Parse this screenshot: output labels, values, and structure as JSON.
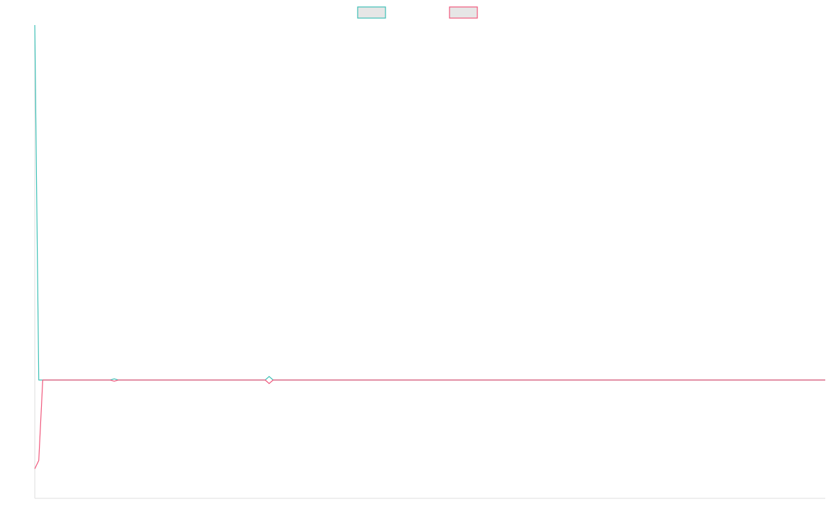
{
  "chart_data": {
    "type": "line",
    "title": "",
    "xlabel": "",
    "ylabel": "",
    "grid": false,
    "legend_position": "top-center",
    "ylim": [
      -100,
      300
    ],
    "series": [
      {
        "color": "#3bbfb5",
        "values": [
          300,
          0,
          0,
          0,
          0,
          0,
          0,
          0,
          0,
          0,
          0,
          0,
          0,
          0,
          0,
          0,
          0,
          0,
          0,
          0,
          1,
          0,
          0,
          0,
          0,
          0,
          0,
          0,
          0,
          0,
          0,
          0,
          0,
          0,
          0,
          0,
          0,
          0,
          0,
          0,
          0,
          0,
          0,
          0,
          0,
          0,
          0,
          0,
          0,
          0,
          0,
          0,
          0,
          0,
          0,
          0,
          0,
          0,
          0,
          3,
          0,
          0,
          0,
          0,
          0,
          0,
          0,
          0,
          0,
          0,
          0,
          0,
          0,
          0,
          0,
          0,
          0,
          0,
          0,
          0,
          0,
          0,
          0,
          0,
          0,
          0,
          0,
          0,
          0,
          0,
          0,
          0,
          0,
          0,
          0,
          0,
          0,
          0,
          0,
          0,
          0,
          0,
          0,
          0,
          0,
          0,
          0,
          0,
          0,
          0,
          0,
          0,
          0,
          0,
          0,
          0,
          0,
          0,
          0,
          0,
          0,
          0,
          0,
          0,
          0,
          0,
          0,
          0,
          0,
          0,
          0,
          0,
          0,
          0,
          0,
          0,
          0,
          0,
          0,
          0,
          0,
          0,
          0,
          0,
          0,
          0,
          0,
          0,
          0,
          0,
          0,
          0,
          0,
          0,
          0,
          0,
          0,
          0,
          0,
          0,
          0,
          0,
          0,
          0,
          0,
          0,
          0,
          0,
          0,
          0,
          0,
          0,
          0,
          0,
          0,
          0,
          0,
          0,
          0,
          0,
          0,
          0,
          0,
          0,
          0,
          0,
          0,
          0,
          0,
          0,
          0,
          0,
          0,
          0,
          0,
          0,
          0,
          0,
          0,
          0
        ]
      },
      {
        "color": "#f0557a",
        "values": [
          -75,
          -68,
          0,
          0,
          0,
          0,
          0,
          0,
          0,
          0,
          0,
          0,
          0,
          0,
          0,
          0,
          0,
          0,
          0,
          0,
          -1,
          0,
          0,
          0,
          0,
          0,
          0,
          0,
          0,
          0,
          0,
          0,
          0,
          0,
          0,
          0,
          0,
          0,
          0,
          0,
          0,
          0,
          0,
          0,
          0,
          0,
          0,
          0,
          0,
          0,
          0,
          0,
          0,
          0,
          0,
          0,
          0,
          0,
          0,
          -3,
          0,
          0,
          0,
          0,
          0,
          0,
          0,
          0,
          0,
          0,
          0,
          0,
          0,
          0,
          0,
          0,
          0,
          0,
          0,
          0,
          0,
          0,
          0,
          0,
          0,
          0,
          0,
          0,
          0,
          0,
          0,
          0,
          0,
          0,
          0,
          0,
          0,
          0,
          0,
          0,
          0,
          0,
          0,
          0,
          0,
          0,
          0,
          0,
          0,
          0,
          0,
          0,
          0,
          0,
          0,
          0,
          0,
          0,
          0,
          0,
          0,
          0,
          0,
          0,
          0,
          0,
          0,
          0,
          0,
          0,
          0,
          0,
          0,
          0,
          0,
          0,
          0,
          0,
          0,
          0,
          0,
          0,
          0,
          0,
          0,
          0,
          0,
          0,
          0,
          0,
          0,
          0,
          0,
          0,
          0,
          0,
          0,
          0,
          0,
          0,
          0,
          0,
          0,
          0,
          0,
          0,
          0,
          0,
          0,
          0,
          0,
          0,
          0,
          0,
          0,
          0,
          0,
          0,
          0,
          0,
          0,
          0,
          0,
          0,
          0,
          0,
          0,
          0,
          0,
          0,
          0,
          0,
          0,
          0,
          0,
          0,
          0,
          0,
          0,
          0
        ]
      }
    ]
  }
}
